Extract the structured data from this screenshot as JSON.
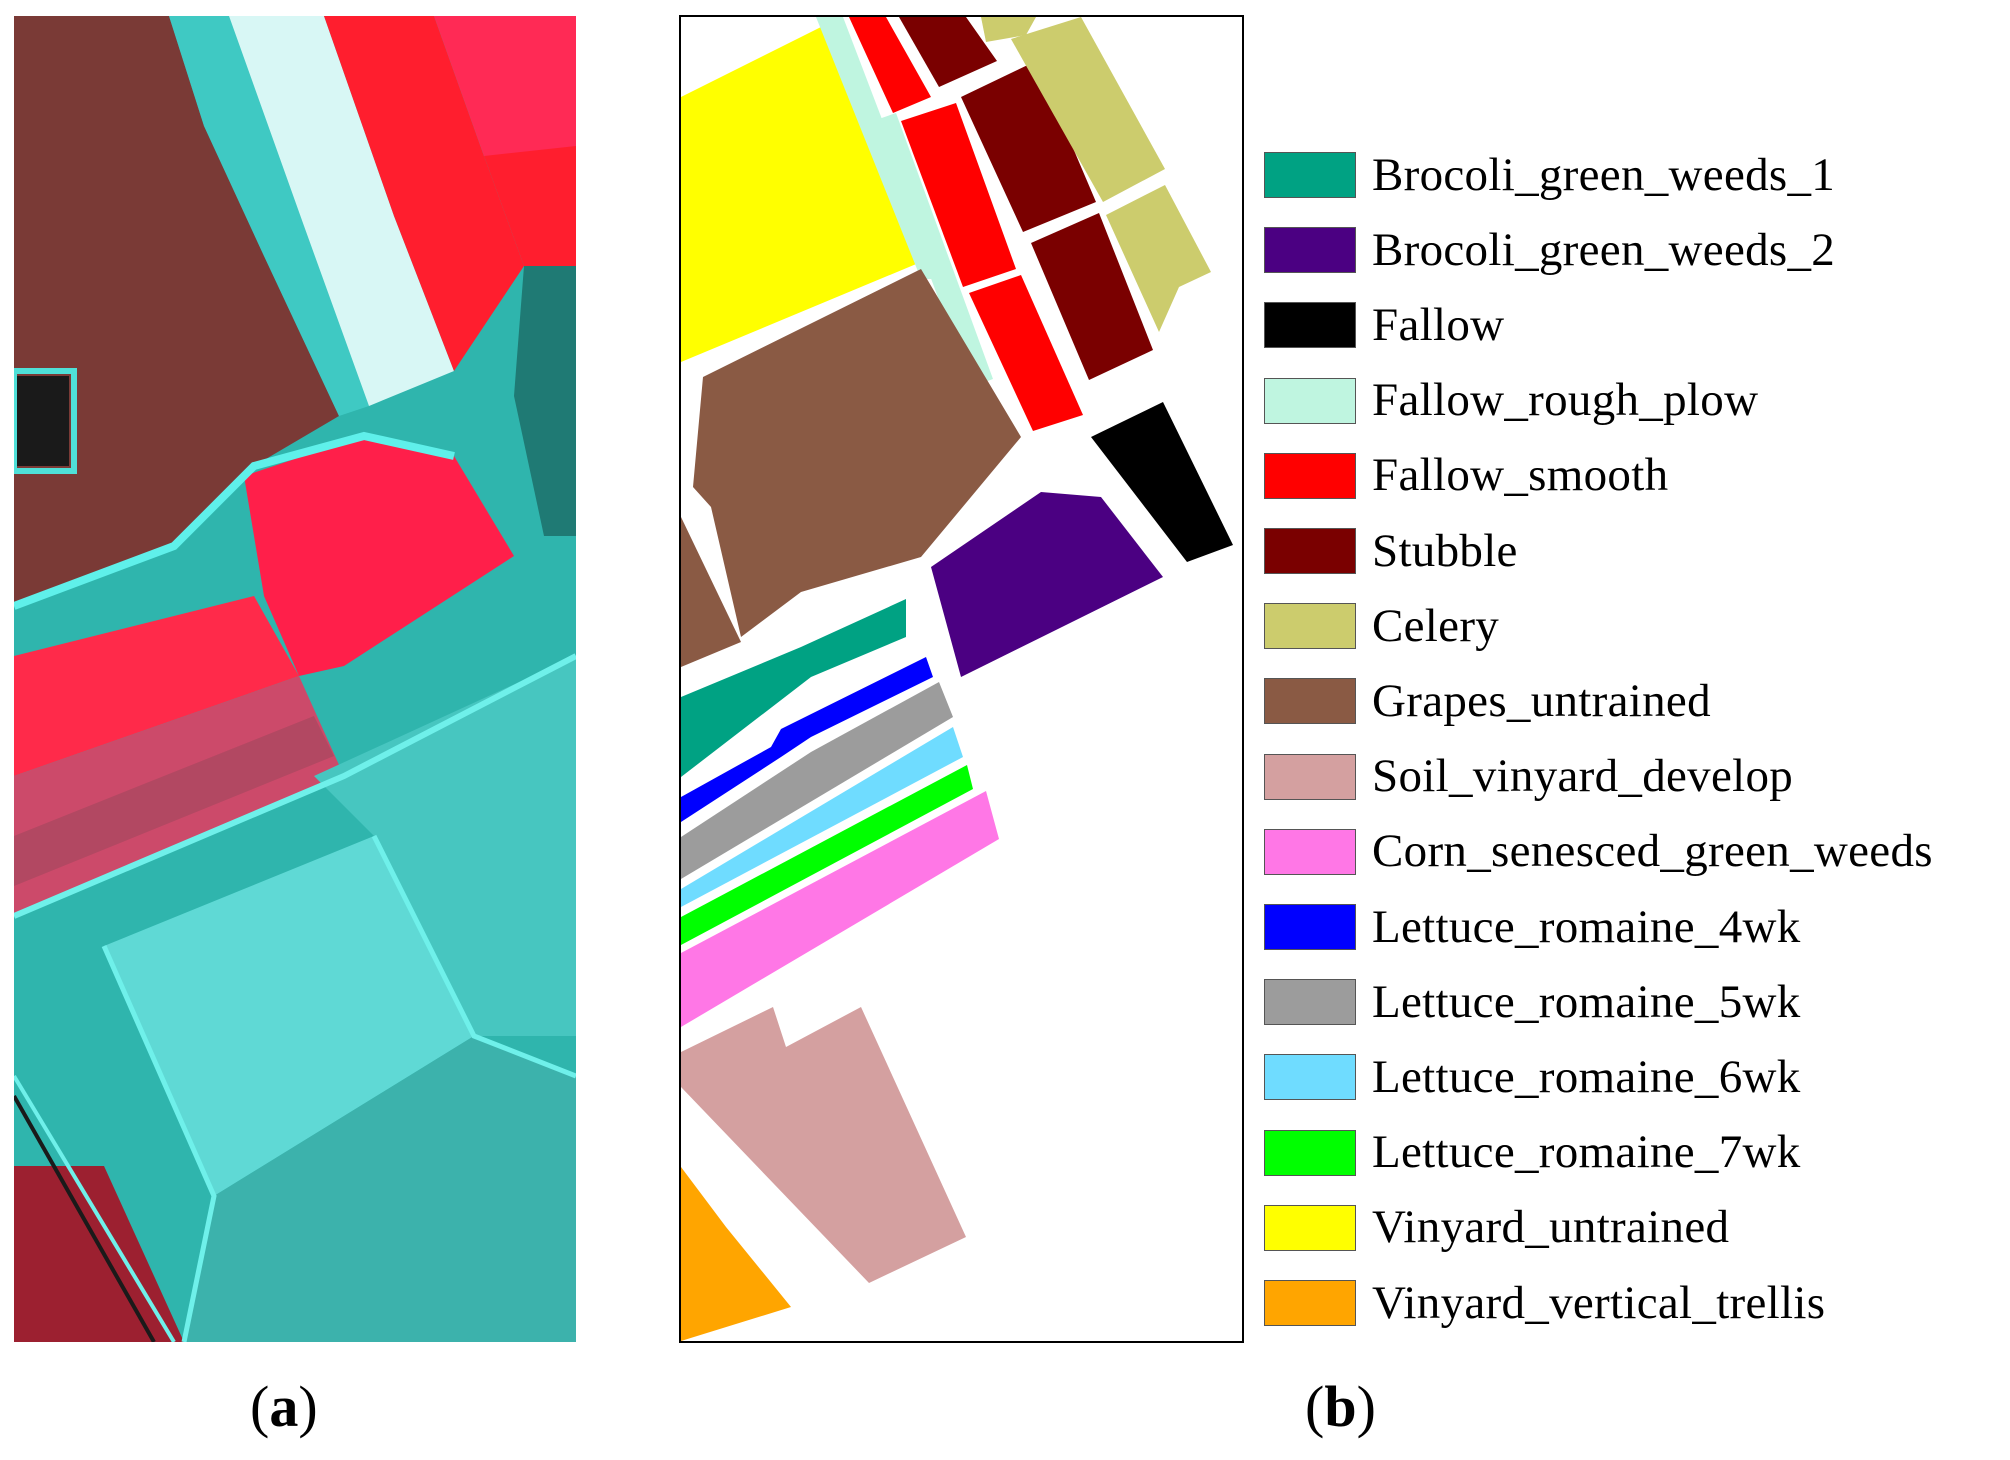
{
  "panels": [
    {
      "id": "a",
      "caption_open": "(",
      "caption_letter": "a",
      "caption_close": ")"
    },
    {
      "id": "b",
      "caption_open": "(",
      "caption_letter": "b",
      "caption_close": ")"
    }
  ],
  "legend": [
    {
      "label": "Brocoli_green_weeds_1",
      "color": "#00a283"
    },
    {
      "label": "Brocoli_green_weeds_2",
      "color": "#4b0082"
    },
    {
      "label": "Fallow",
      "color": "#000000"
    },
    {
      "label": "Fallow_rough_plow",
      "color": "#bff5e0"
    },
    {
      "label": "Fallow_smooth",
      "color": "#ff0000"
    },
    {
      "label": "Stubble",
      "color": "#7a0000"
    },
    {
      "label": "Celery",
      "color": "#cccc6d"
    },
    {
      "label": "Grapes_untrained",
      "color": "#8a5a44"
    },
    {
      "label": "Soil_vinyard_develop",
      "color": "#d4a0a0"
    },
    {
      "label": "Corn_senesced_green_weeds",
      "color": "#ff77e6"
    },
    {
      "label": "Lettuce_romaine_4wk",
      "color": "#0000ff"
    },
    {
      "label": "Lettuce_romaine_5wk",
      "color": "#9c9c9c"
    },
    {
      "label": "Lettuce_romaine_6wk",
      "color": "#6fdcff"
    },
    {
      "label": "Lettuce_romaine_7wk",
      "color": "#00ff00"
    },
    {
      "label": "Vinyard_untrained",
      "color": "#ffff00"
    },
    {
      "label": "Vinyard_vertical_trellis",
      "color": "#ffa500"
    }
  ]
}
